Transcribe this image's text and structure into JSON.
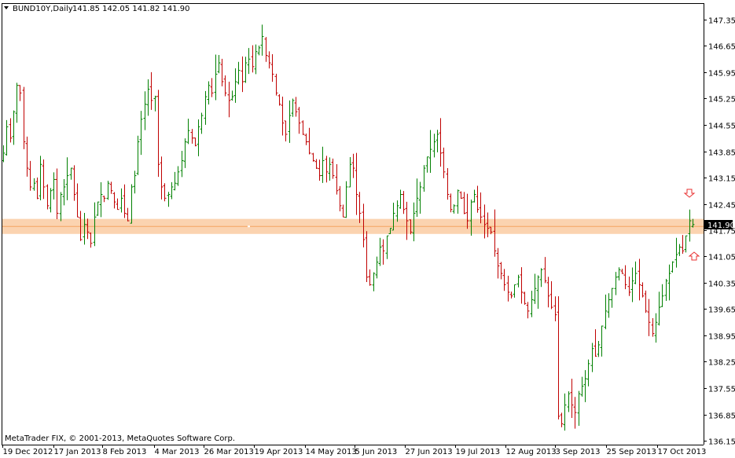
{
  "header": {
    "symbol_label": "BUND10Y,Daily",
    "ohlc_label": "141.85 142.05 141.82 141.90"
  },
  "footer": {
    "copyright": "MetaTrader FIX, © 2001-2013, MetaQuotes Software Corp."
  },
  "current_price_label": "141.90",
  "colors": {
    "up_bar": "#008000",
    "down_bar": "#c00000",
    "zone_fill": "#fbd3b0",
    "zone_line": "#f4a460",
    "price_tag": "#000000",
    "arrow": "#e83030",
    "axis": "#000000"
  },
  "annotations": {
    "down_arrow_icon": "arrow-down-outline",
    "up_arrow_icon": "arrow-up-outline"
  },
  "chart_data": {
    "type": "ohlc",
    "ylim": [
      136.0,
      147.6
    ],
    "y_ticks": [
      "147.35",
      "146.65",
      "145.95",
      "145.25",
      "144.55",
      "143.85",
      "143.15",
      "142.45",
      "141.75",
      "141.05",
      "140.35",
      "139.65",
      "138.95",
      "138.25",
      "137.55",
      "136.85",
      "136.15"
    ],
    "x_ticks": [
      "19 Dec 2012",
      "17 Jan 2013",
      "8 Feb 2013",
      "4 Mar 2013",
      "26 Mar 2013",
      "19 Apr 2013",
      "14 May 2013",
      "5 Jun 2013",
      "27 Jun 2013",
      "19 Jul 2013",
      "12 Aug 2013",
      "3 Sep 2013",
      "25 Sep 2013",
      "17 Oct 2013"
    ],
    "current_price": 141.9,
    "resistance_zone": [
      141.65,
      142.05
    ],
    "resistance_line": 141.85,
    "last_bar": {
      "open": 141.85,
      "high": 142.05,
      "low": 141.82,
      "close": 141.9
    },
    "closes": [
      143.8,
      144.5,
      144.2,
      144.9,
      145.6,
      145.4,
      144.1,
      143.4,
      142.9,
      143.0,
      142.6,
      143.5,
      142.9,
      142.4,
      142.8,
      143.1,
      142.2,
      142.7,
      142.9,
      143.2,
      143.4,
      142.7,
      142.1,
      141.5,
      141.9,
      141.7,
      141.4,
      142.1,
      142.5,
      142.7,
      142.6,
      143.0,
      142.8,
      142.5,
      142.3,
      142.6,
      142.2,
      142.0,
      142.9,
      143.2,
      144.1,
      144.7,
      145.1,
      145.5,
      145.2,
      145.3,
      143.5,
      142.9,
      142.6,
      142.7,
      142.9,
      143.0,
      143.3,
      143.6,
      144.1,
      144.4,
      144.2,
      144.0,
      144.5,
      144.8,
      145.3,
      145.6,
      145.4,
      145.9,
      146.2,
      145.7,
      145.4,
      145.2,
      145.3,
      145.7,
      146.0,
      145.7,
      146.2,
      146.3,
      146.1,
      146.5,
      146.6,
      146.9,
      146.4,
      146.2,
      145.9,
      145.4,
      145.1,
      144.6,
      144.3,
      144.8,
      145.2,
      144.9,
      144.6,
      144.3,
      144.1,
      143.8,
      143.6,
      143.4,
      143.2,
      143.6,
      143.3,
      143.5,
      143.2,
      142.8,
      142.4,
      142.1,
      142.9,
      143.5,
      143.4,
      142.7,
      142.2,
      141.5,
      140.5,
      140.3,
      140.6,
      140.9,
      141.3,
      141.2,
      141.6,
      141.8,
      142.2,
      142.4,
      142.7,
      142.3,
      142.0,
      141.7,
      142.2,
      142.6,
      142.9,
      143.4,
      143.7,
      143.9,
      144.1,
      144.3,
      143.8,
      143.3,
      142.7,
      142.3,
      142.4,
      142.8,
      142.6,
      142.2,
      142.0,
      142.5,
      142.7,
      142.3,
      142.1,
      141.9,
      141.8,
      141.7,
      141.2,
      140.8,
      140.6,
      140.3,
      140.1,
      140.0,
      140.3,
      140.5,
      140.1,
      139.8,
      139.6,
      139.9,
      140.2,
      140.5,
      140.7,
      140.4,
      140.0,
      139.7,
      139.5,
      136.8,
      136.6,
      137.1,
      137.4,
      137.1,
      136.9,
      137.4,
      137.6,
      137.8,
      138.2,
      138.6,
      138.4,
      138.7,
      139.2,
      139.6,
      139.9,
      140.2,
      140.5,
      140.7,
      140.6,
      140.3,
      140.1,
      140.4,
      140.6,
      140.3,
      140.0,
      139.6,
      139.3,
      139.0,
      139.3,
      139.7,
      140.0,
      140.4,
      140.6,
      140.9,
      141.1,
      141.3,
      141.2,
      141.6,
      142.0,
      141.9
    ]
  }
}
